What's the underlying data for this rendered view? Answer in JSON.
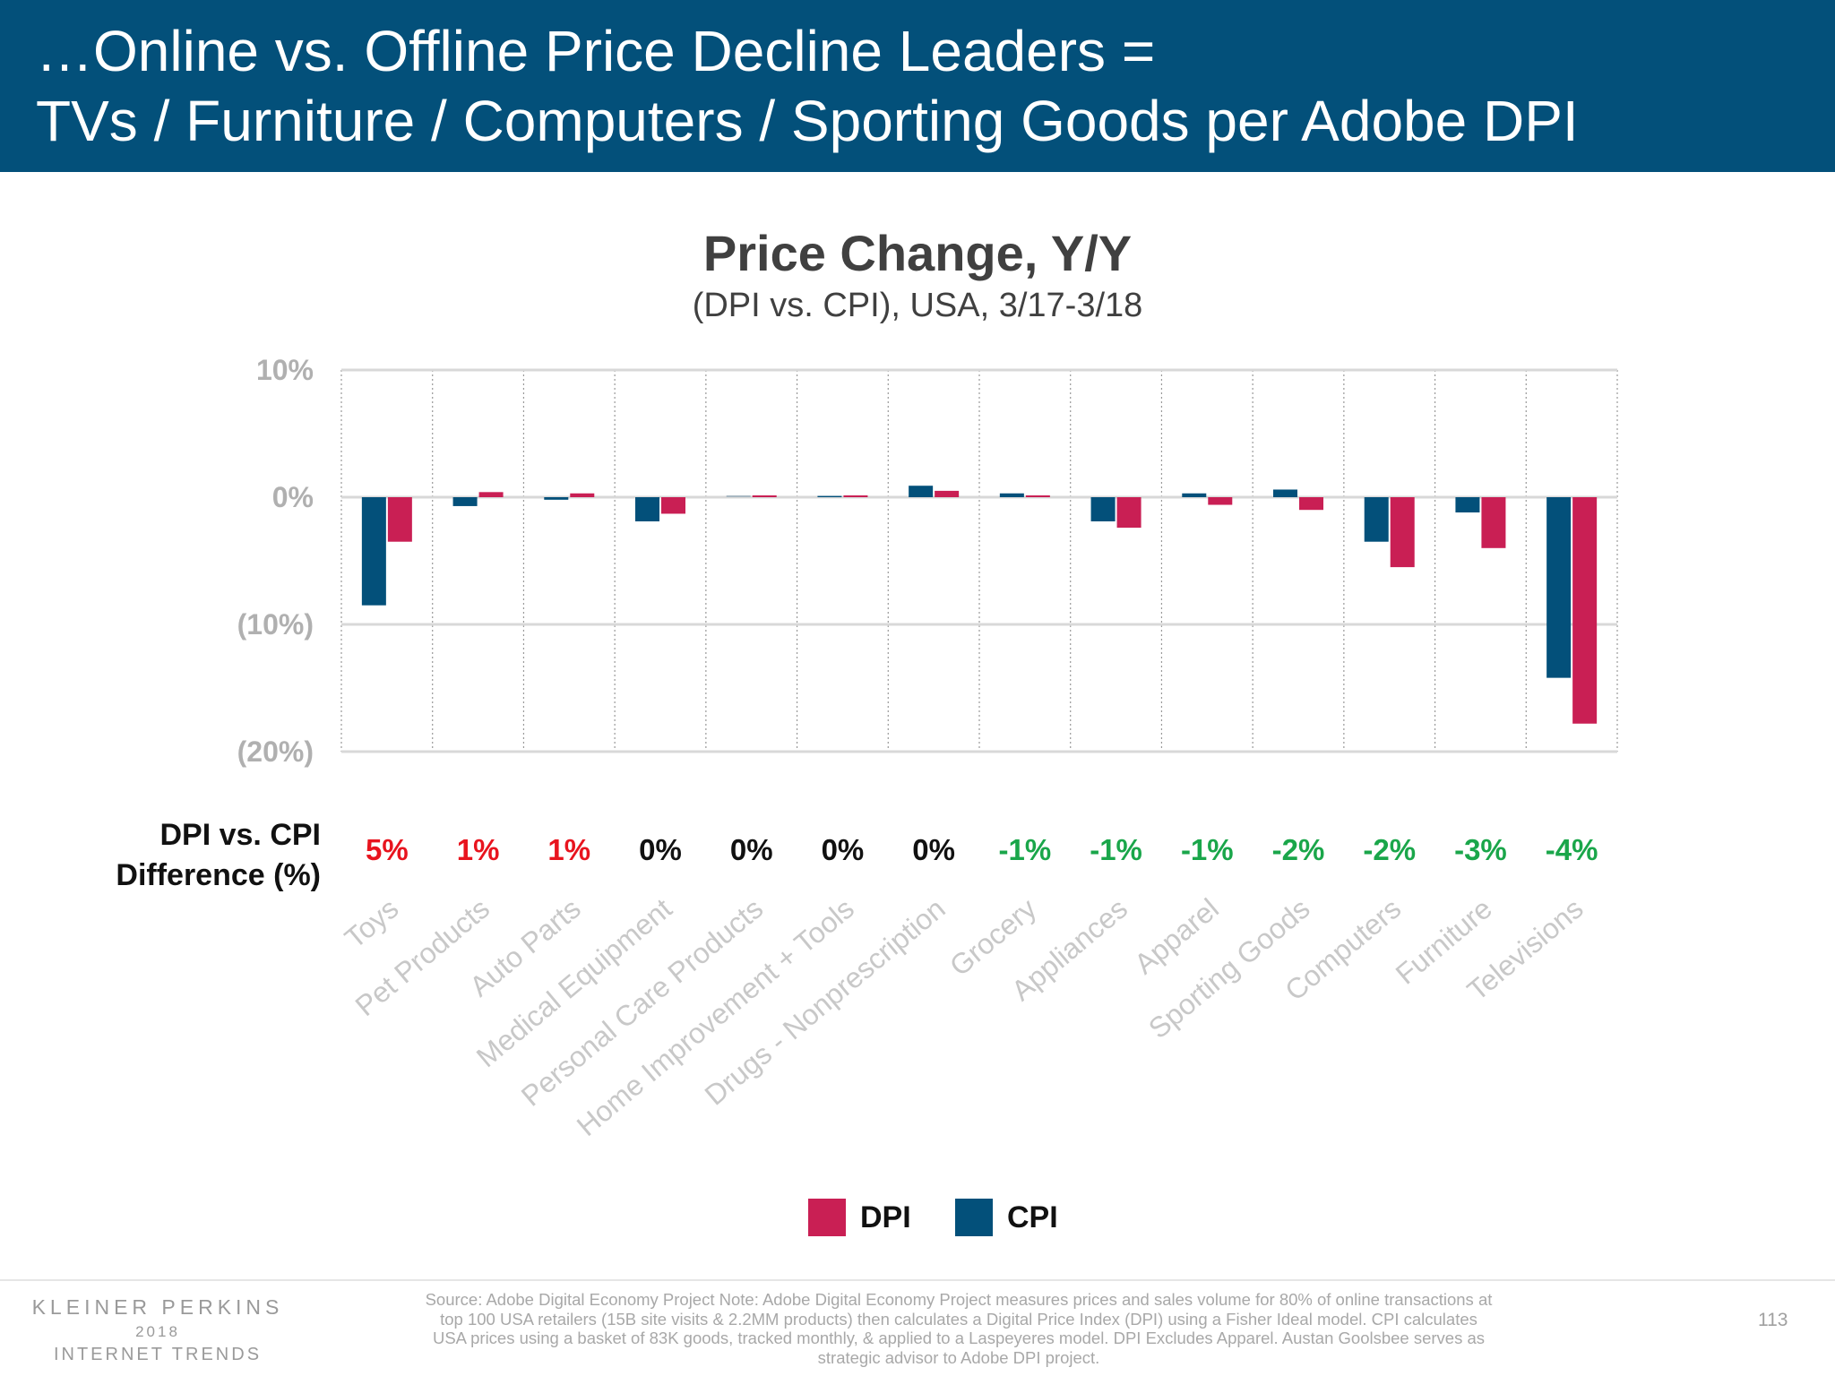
{
  "header": {
    "line1": "…Online vs. Offline Price Decline Leaders =",
    "line2": "TVs / Furniture / Computers / Sporting Goods per Adobe DPI"
  },
  "diff_row_label": {
    "line1": "DPI vs. CPI",
    "line2": "Difference (%)"
  },
  "colors": {
    "dpi": "#c91f54",
    "cpi": "#03507a",
    "positive_diff": "#e8141e",
    "neutral_diff": "#111111",
    "negative_diff": "#1aa64a",
    "header_bg": "#03507a"
  },
  "chart_data": {
    "type": "bar",
    "title": "Price Change, Y/Y",
    "subtitle": "(DPI vs. CPI), USA, 3/17-3/18",
    "categories": [
      "Toys",
      "Pet Products",
      "Auto Parts",
      "Medical Equipment",
      "Personal Care Products",
      "Home Improvement + Tools",
      "Drugs - Nonprescription",
      "Grocery",
      "Appliances",
      "Apparel",
      "Sporting Goods",
      "Computers",
      "Furniture",
      "Televisions"
    ],
    "series": [
      {
        "name": "CPI",
        "values": [
          -8.5,
          -0.7,
          -0.2,
          -1.9,
          0,
          0.1,
          0.9,
          0.3,
          -1.9,
          0.3,
          0.6,
          -3.5,
          -1.2,
          -14.2
        ]
      },
      {
        "name": "DPI",
        "values": [
          -3.5,
          0.4,
          0.3,
          -1.3,
          0,
          0,
          0.5,
          0,
          -2.4,
          -0.6,
          -1.0,
          -5.5,
          -4.0,
          -17.8
        ]
      }
    ],
    "differences": [
      "5%",
      "1%",
      "1%",
      "0%",
      "0%",
      "0%",
      "0%",
      "-1%",
      "-1%",
      "-1%",
      "-2%",
      "-2%",
      "-3%",
      "-4%"
    ],
    "ylim": [
      -20,
      10
    ],
    "yticks": [
      10,
      0,
      -10,
      -20
    ],
    "ytick_labels": [
      "10%",
      "0%",
      "(10%)",
      "(20%)"
    ],
    "grid": true,
    "legend": {
      "placement": "bottom",
      "entries": [
        "DPI",
        "CPI"
      ]
    }
  },
  "footer": {
    "logo_line1": "KLEINER PERKINS",
    "logo_line2": "2018",
    "logo_line3": "INTERNET TRENDS",
    "source": "Source: Adobe Digital Economy Project  Note: Adobe Digital Economy Project measures prices and sales volume for 80% of online transactions at top 100 USA retailers (15B site visits & 2.2MM products) then calculates a Digital Price Index (DPI) using a Fisher Ideal model.  CPI calculates USA prices using a basket of 83K goods, tracked monthly, & applied to a Laspeyeres model. DPI Excludes Apparel. Austan Goolsbee serves as strategic advisor to Adobe DPI project.",
    "page_number": "113"
  }
}
